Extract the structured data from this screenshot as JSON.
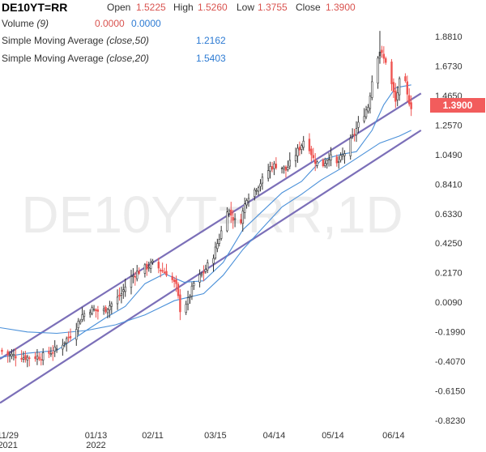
{
  "header": {
    "symbol": "DE10YT=RR",
    "open_label": "Open",
    "open": "1.5225",
    "high_label": "High",
    "high": "1.5260",
    "low_label": "Low",
    "low": "1.3755",
    "close_label": "Close",
    "close": "1.3900",
    "vol_label": "Volume",
    "vol_param": "(9)",
    "vol_v1": "0.0000",
    "vol_v2": "0.0000",
    "sma50_label": "Simple Moving Average",
    "sma50_param": "(close,50)",
    "sma50_value": "1.2162",
    "sma20_label": "Simple Moving Average",
    "sma20_param": "(close,20)",
    "sma20_value": "1.5403"
  },
  "watermark": "DE10YT=RR,1D",
  "last_price": "1.3900",
  "colors": {
    "up": "#26a69a",
    "down": "#ef5350",
    "sma": "#4a90d9",
    "trend": "#7b6fb8",
    "last_box": "#f25c5c"
  },
  "chart_data": {
    "type": "candlestick",
    "y_ticks": [
      "1.8810",
      "1.6730",
      "1.4650",
      "1.2570",
      "1.0490",
      "0.8410",
      "0.6330",
      "0.4250",
      "0.2170",
      "0.0090",
      "-0.1990",
      "-0.4070",
      "-0.6150",
      "-0.8230"
    ],
    "ylim": [
      -0.823,
      1.881
    ],
    "x_ticks": [
      {
        "label": "11/29",
        "sub": "2021",
        "day": 0
      },
      {
        "label": "01/13",
        "sub": "2022",
        "day": 45
      },
      {
        "label": "02/11",
        "sub": "",
        "day": 74
      },
      {
        "label": "03/15",
        "sub": "",
        "day": 106
      },
      {
        "label": "04/14",
        "sub": "",
        "day": 136
      },
      {
        "label": "05/14",
        "sub": "",
        "day": 166
      },
      {
        "label": "06/14",
        "sub": "",
        "day": 197
      }
    ],
    "x_range_days": [
      -4,
      214
    ],
    "close_path": [
      [
        -4,
        -0.33
      ],
      [
        0,
        -0.36
      ],
      [
        10,
        -0.38
      ],
      [
        18,
        -0.37
      ],
      [
        25,
        -0.32
      ],
      [
        33,
        -0.21
      ],
      [
        38,
        -0.08
      ],
      [
        42,
        -0.04
      ],
      [
        48,
        -0.06
      ],
      [
        55,
        0.02
      ],
      [
        58,
        0.07
      ],
      [
        62,
        0.17
      ],
      [
        66,
        0.22
      ],
      [
        70,
        0.25
      ],
      [
        74,
        0.28
      ],
      [
        78,
        0.24
      ],
      [
        82,
        0.21
      ],
      [
        86,
        0.12
      ],
      [
        88,
        -0.04
      ],
      [
        92,
        0.02
      ],
      [
        95,
        0.14
      ],
      [
        100,
        0.22
      ],
      [
        105,
        0.34
      ],
      [
        110,
        0.55
      ],
      [
        112,
        0.67
      ],
      [
        116,
        0.58
      ],
      [
        118,
        0.54
      ],
      [
        122,
        0.75
      ],
      [
        126,
        0.8
      ],
      [
        130,
        0.87
      ],
      [
        134,
        0.96
      ],
      [
        138,
        0.98
      ],
      [
        142,
        0.94
      ],
      [
        146,
        1.03
      ],
      [
        150,
        1.12
      ],
      [
        152,
        1.18
      ],
      [
        156,
        1.02
      ],
      [
        160,
        0.96
      ],
      [
        164,
        1.04
      ],
      [
        168,
        0.98
      ],
      [
        172,
        1.06
      ],
      [
        176,
        1.17
      ],
      [
        180,
        1.29
      ],
      [
        184,
        1.39
      ],
      [
        186,
        1.57
      ],
      [
        188,
        1.72
      ],
      [
        190,
        1.78
      ],
      [
        192,
        1.72
      ],
      [
        194,
        1.7
      ],
      [
        196,
        1.54
      ],
      [
        198,
        1.42
      ],
      [
        200,
        1.56
      ],
      [
        202,
        1.63
      ],
      [
        204,
        1.46
      ],
      [
        206,
        1.39
      ]
    ],
    "series": [
      {
        "name": "Simple Moving Average (close,50)",
        "value_label": "1.2162",
        "points": [
          [
            -4,
            -0.17
          ],
          [
            10,
            -0.2
          ],
          [
            25,
            -0.21
          ],
          [
            40,
            -0.19
          ],
          [
            55,
            -0.15
          ],
          [
            70,
            -0.08
          ],
          [
            85,
            0.02
          ],
          [
            100,
            0.07
          ],
          [
            110,
            0.2
          ],
          [
            120,
            0.38
          ],
          [
            130,
            0.53
          ],
          [
            140,
            0.68
          ],
          [
            150,
            0.77
          ],
          [
            160,
            0.87
          ],
          [
            170,
            0.95
          ],
          [
            180,
            1.04
          ],
          [
            190,
            1.13
          ],
          [
            200,
            1.18
          ],
          [
            206,
            1.22
          ]
        ]
      },
      {
        "name": "Simple Moving Average (close,20)",
        "value_label": "1.5403",
        "points": [
          [
            -4,
            -0.38
          ],
          [
            10,
            -0.35
          ],
          [
            25,
            -0.33
          ],
          [
            40,
            -0.19
          ],
          [
            50,
            -0.1
          ],
          [
            60,
            -0.02
          ],
          [
            70,
            0.14
          ],
          [
            80,
            0.21
          ],
          [
            90,
            0.15
          ],
          [
            100,
            0.16
          ],
          [
            110,
            0.29
          ],
          [
            120,
            0.52
          ],
          [
            130,
            0.65
          ],
          [
            140,
            0.78
          ],
          [
            150,
            0.86
          ],
          [
            160,
            1.01
          ],
          [
            170,
            1.05
          ],
          [
            178,
            1.07
          ],
          [
            186,
            1.22
          ],
          [
            192,
            1.4
          ],
          [
            198,
            1.52
          ],
          [
            206,
            1.54
          ]
        ]
      }
    ],
    "trendlines": [
      {
        "from": [
          -4,
          -0.39
        ],
        "to": [
          211,
          1.48
        ]
      },
      {
        "from": [
          -4,
          -0.7
        ],
        "to": [
          211,
          1.22
        ]
      }
    ],
    "last_close": 1.39
  }
}
